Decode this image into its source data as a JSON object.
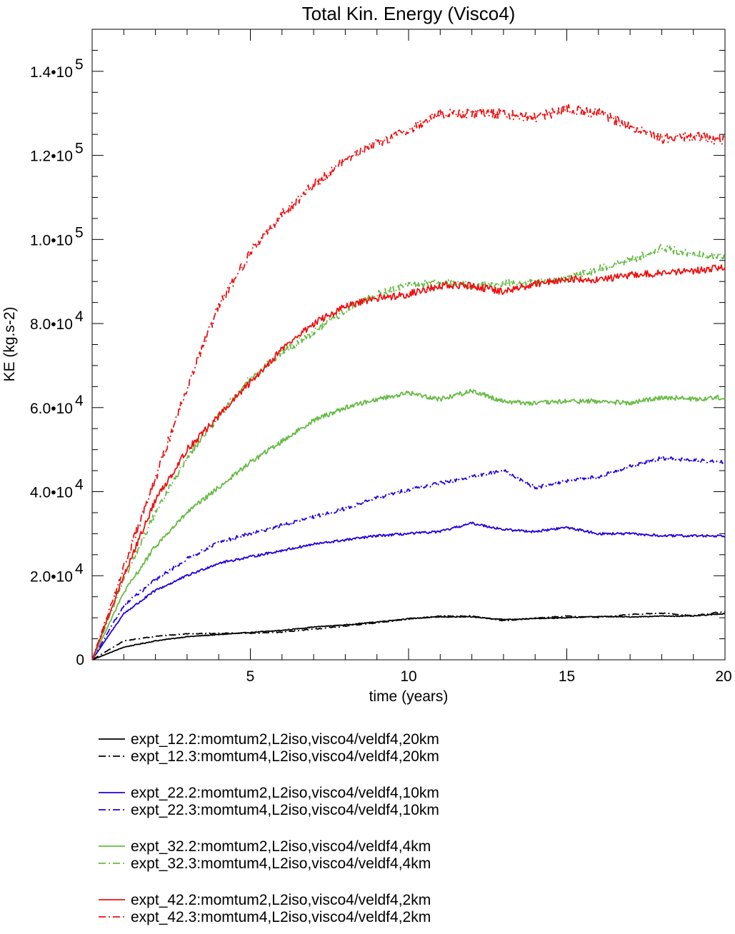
{
  "chart_data": {
    "type": "line",
    "title": "Total Kin. Energy (Visco4)",
    "xlabel": "time (years)",
    "ylabel": "KE (kg.s-2)",
    "xlim": [
      0,
      20
    ],
    "ylim": [
      0,
      150000
    ],
    "x_ticks": [
      {
        "value": 5,
        "label": "5"
      },
      {
        "value": 10,
        "label": "10"
      },
      {
        "value": 15,
        "label": "15"
      },
      {
        "value": 20,
        "label": "20"
      }
    ],
    "y_ticks": [
      {
        "value": 0,
        "mantissa": "0",
        "exp": ""
      },
      {
        "value": 20000,
        "mantissa": "2.0•10",
        "exp": "4"
      },
      {
        "value": 40000,
        "mantissa": "4.0•10",
        "exp": "4"
      },
      {
        "value": 60000,
        "mantissa": "6.0•10",
        "exp": "4"
      },
      {
        "value": 80000,
        "mantissa": "8.0•10",
        "exp": "4"
      },
      {
        "value": 100000,
        "mantissa": "1.0•10",
        "exp": "5"
      },
      {
        "value": 120000,
        "mantissa": "1.2•10",
        "exp": "5"
      },
      {
        "value": 140000,
        "mantissa": "1.4•10",
        "exp": "5"
      }
    ],
    "grid": false,
    "legend_position": "below",
    "x": [
      0,
      1,
      2,
      3,
      4,
      5,
      6,
      7,
      8,
      9,
      10,
      11,
      12,
      13,
      14,
      15,
      16,
      17,
      18,
      19,
      20
    ],
    "series": [
      {
        "name": "expt_12.2:momtum2,L2iso,visco4/veldf4,20km",
        "color": "#000000",
        "dash": "solid",
        "values": [
          0,
          3000,
          4500,
          5500,
          6000,
          6500,
          7000,
          7800,
          8300,
          9000,
          9800,
          10200,
          10200,
          9600,
          9800,
          10000,
          10300,
          10200,
          10400,
          10400,
          11000
        ]
      },
      {
        "name": "expt_12.3:momtum4,L2iso,visco4/veldf4,20km",
        "color": "#000000",
        "dash": "dashdot",
        "values": [
          0,
          4500,
          5600,
          6200,
          6300,
          6300,
          6600,
          7300,
          8000,
          8800,
          9700,
          10400,
          10400,
          9300,
          9900,
          10400,
          10100,
          10800,
          11100,
          10500,
          11500
        ]
      },
      {
        "name": "expt_22.2:momtum2,L2iso,visco4/veldf4,10km",
        "color": "#2200dd",
        "dash": "solid",
        "values": [
          0,
          11000,
          16500,
          20000,
          23000,
          24500,
          26000,
          27500,
          28500,
          29500,
          30000,
          30500,
          32500,
          31000,
          30500,
          31500,
          30000,
          30000,
          29500,
          29500,
          29500
        ]
      },
      {
        "name": "expt_22.3:momtum4,L2iso,visco4/veldf4,10km",
        "color": "#2200dd",
        "dash": "dashdot",
        "values": [
          0,
          13000,
          19000,
          24000,
          28000,
          30000,
          32000,
          34000,
          36000,
          38500,
          40500,
          42000,
          43500,
          45000,
          41000,
          42500,
          43500,
          46000,
          48000,
          47500,
          47000
        ]
      },
      {
        "name": "expt_32.2:momtum2,L2iso,visco4/veldf4,4km",
        "color": "#66bb44",
        "dash": "solid",
        "values": [
          0,
          16000,
          27000,
          35000,
          41000,
          47000,
          52000,
          57000,
          60000,
          62000,
          63500,
          62000,
          64000,
          61500,
          61000,
          61500,
          61500,
          61000,
          62500,
          62000,
          62500
        ]
      },
      {
        "name": "expt_32.3:momtum4,L2iso,visco4/veldf4,4km",
        "color": "#66bb44",
        "dash": "dashdot",
        "values": [
          0,
          19000,
          35000,
          48000,
          58000,
          67000,
          73000,
          78000,
          83000,
          87000,
          89000,
          90000,
          89000,
          89500,
          90000,
          90500,
          93000,
          95000,
          98000,
          96500,
          96000
        ]
      },
      {
        "name": "expt_42.2:momtum2,L2iso,visco4/veldf4,2km",
        "color": "#ee1111",
        "dash": "solid",
        "values": [
          0,
          20000,
          38000,
          50000,
          58000,
          66000,
          74000,
          80000,
          84000,
          86000,
          87000,
          89000,
          89000,
          87500,
          89500,
          90500,
          90500,
          91500,
          92000,
          92500,
          93500
        ]
      },
      {
        "name": "expt_42.3:momtum4,L2iso,visco4/veldf4,2km",
        "color": "#ee1111",
        "dash": "dashdot",
        "values": [
          0,
          22000,
          43000,
          65000,
          84000,
          97000,
          106000,
          113000,
          119000,
          123000,
          126000,
          130000,
          130000,
          130000,
          129000,
          131000,
          130000,
          127000,
          124000,
          124500,
          123500
        ]
      }
    ]
  }
}
